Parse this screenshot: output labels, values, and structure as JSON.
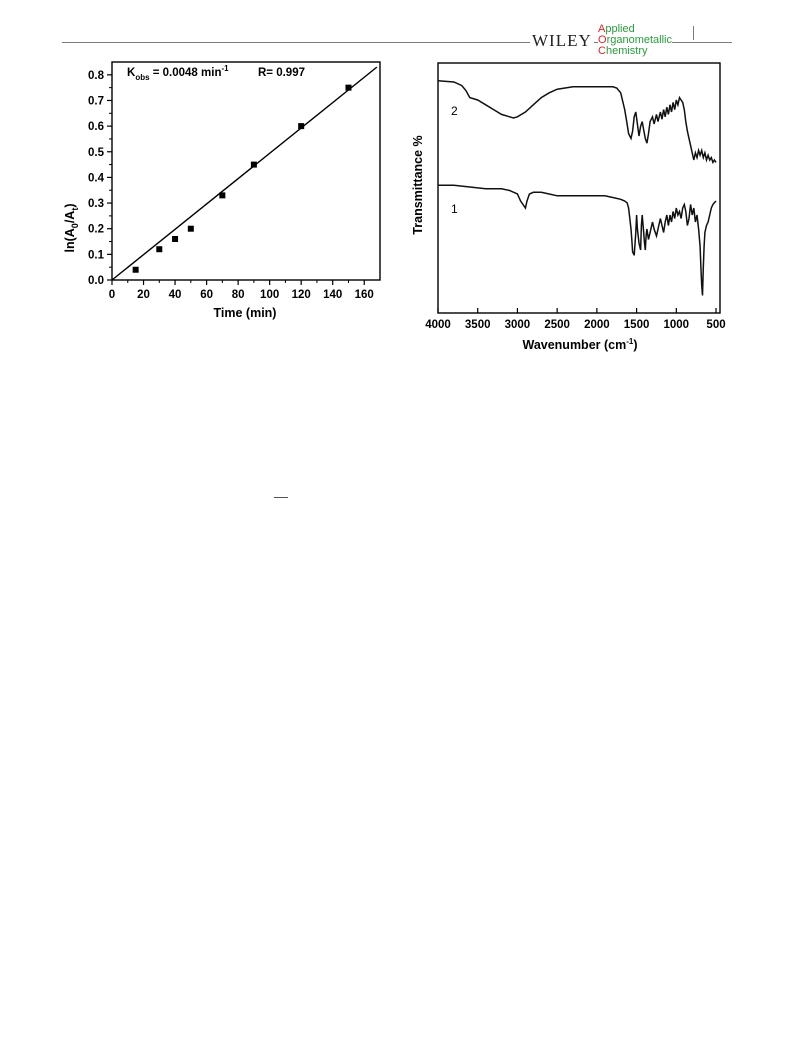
{
  "header": {
    "publisher": "WILEY",
    "journal_lines": [
      {
        "cap": "A",
        "rest": "pplied"
      },
      {
        "cap": "O",
        "rest": "rganometallic"
      },
      {
        "cap": "C",
        "rest": "hemistry"
      }
    ],
    "brand_red": "#d8262b",
    "brand_green": "#2b9a3e"
  },
  "chart_data": [
    {
      "type": "scatter",
      "xlabel": "Time (min)",
      "ylabel": "ln(A0/At)",
      "annotation_k": "Kobs = 0.0048 min-1",
      "annotation_r": "R= 0.997",
      "xlim": [
        0,
        170
      ],
      "ylim": [
        0,
        0.85
      ],
      "xticks": [
        0,
        20,
        40,
        60,
        80,
        100,
        120,
        140,
        160
      ],
      "yticks": [
        0.0,
        0.1,
        0.2,
        0.3,
        0.4,
        0.5,
        0.6,
        0.7,
        0.8
      ],
      "ytick_labels": [
        "0.0",
        "0.1",
        "0.2",
        "0.3",
        "0.4",
        "0.5",
        "0.6",
        "0.7",
        "0.8"
      ],
      "points": [
        {
          "x": 15,
          "y": 0.04
        },
        {
          "x": 30,
          "y": 0.12
        },
        {
          "x": 40,
          "y": 0.16
        },
        {
          "x": 50,
          "y": 0.2
        },
        {
          "x": 70,
          "y": 0.33
        },
        {
          "x": 90,
          "y": 0.45
        },
        {
          "x": 120,
          "y": 0.6
        },
        {
          "x": 150,
          "y": 0.75
        }
      ],
      "fit_line": {
        "x": [
          0,
          168
        ],
        "y": [
          0,
          0.83
        ]
      }
    },
    {
      "type": "line",
      "xlabel": "Wavenumber (cm-1)",
      "ylabel": "Transmittance %",
      "xlim": [
        4000,
        450
      ],
      "xticks": [
        4000,
        3500,
        3000,
        2500,
        2000,
        1500,
        1000,
        500
      ],
      "series": [
        {
          "name": "2",
          "x": [
            4000,
            3800,
            3700,
            3650,
            3600,
            3500,
            3400,
            3300,
            3200,
            3100,
            3050,
            3000,
            2900,
            2800,
            2700,
            2600,
            2500,
            2400,
            2300,
            2200,
            2100,
            2000,
            1900,
            1800,
            1750,
            1700,
            1650,
            1620,
            1600,
            1570,
            1550,
            1530,
            1510,
            1490,
            1470,
            1450,
            1430,
            1410,
            1390,
            1370,
            1350,
            1330,
            1300,
            1280,
            1250,
            1230,
            1200,
            1180,
            1160,
            1140,
            1120,
            1100,
            1080,
            1060,
            1040,
            1020,
            1000,
            980,
            960,
            940,
            920,
            900,
            880,
            860,
            840,
            820,
            800,
            780,
            760,
            740,
            720,
            700,
            680,
            660,
            640,
            620,
            600,
            580,
            560,
            540,
            520,
            500
          ],
          "y": [
            96,
            95,
            92,
            88,
            82,
            80,
            76,
            72,
            68,
            66,
            65,
            66,
            70,
            76,
            82,
            86,
            89,
            90,
            91,
            91,
            91,
            91,
            91,
            91,
            90,
            86,
            72,
            60,
            52,
            48,
            54,
            66,
            70,
            60,
            50,
            58,
            62,
            55,
            48,
            44,
            52,
            62,
            66,
            60,
            68,
            62,
            70,
            64,
            72,
            66,
            74,
            68,
            76,
            70,
            78,
            72,
            80,
            76,
            82,
            80,
            78,
            72,
            62,
            54,
            48,
            42,
            36,
            30,
            36,
            32,
            38,
            34,
            38,
            32,
            36,
            30,
            34,
            30,
            32,
            28,
            30,
            28
          ]
        },
        {
          "name": "1",
          "x": [
            4000,
            3800,
            3600,
            3400,
            3200,
            3100,
            3000,
            2960,
            2930,
            2900,
            2880,
            2850,
            2800,
            2700,
            2600,
            2500,
            2400,
            2300,
            2200,
            2100,
            2000,
            1900,
            1800,
            1700,
            1650,
            1620,
            1600,
            1590,
            1580,
            1570,
            1560,
            1550,
            1530,
            1510,
            1500,
            1490,
            1470,
            1450,
            1440,
            1430,
            1410,
            1400,
            1390,
            1380,
            1370,
            1350,
            1330,
            1300,
            1280,
            1250,
            1230,
            1200,
            1180,
            1160,
            1140,
            1120,
            1100,
            1080,
            1060,
            1040,
            1020,
            1000,
            980,
            960,
            940,
            920,
            900,
            880,
            860,
            840,
            820,
            800,
            780,
            760,
            740,
            720,
            700,
            690,
            680,
            670,
            660,
            650,
            640,
            620,
            600,
            580,
            560,
            540,
            520,
            500
          ],
          "y": [
            35,
            35,
            34,
            33,
            33,
            32,
            30,
            26,
            24,
            22,
            26,
            30,
            31,
            31,
            30,
            29,
            29,
            29,
            29,
            29,
            29,
            29,
            28,
            27,
            26,
            25,
            22,
            18,
            14,
            10,
            4,
            -3,
            -5,
            8,
            18,
            10,
            2,
            -2,
            12,
            18,
            8,
            2,
            -2,
            6,
            10,
            4,
            8,
            14,
            10,
            6,
            10,
            16,
            12,
            8,
            14,
            18,
            12,
            18,
            14,
            20,
            16,
            22,
            18,
            20,
            16,
            22,
            24,
            20,
            12,
            16,
            24,
            18,
            22,
            14,
            18,
            10,
            0,
            -12,
            -22,
            -28,
            -12,
            0,
            8,
            12,
            14,
            18,
            22,
            24,
            25,
            26
          ]
        }
      ]
    }
  ]
}
